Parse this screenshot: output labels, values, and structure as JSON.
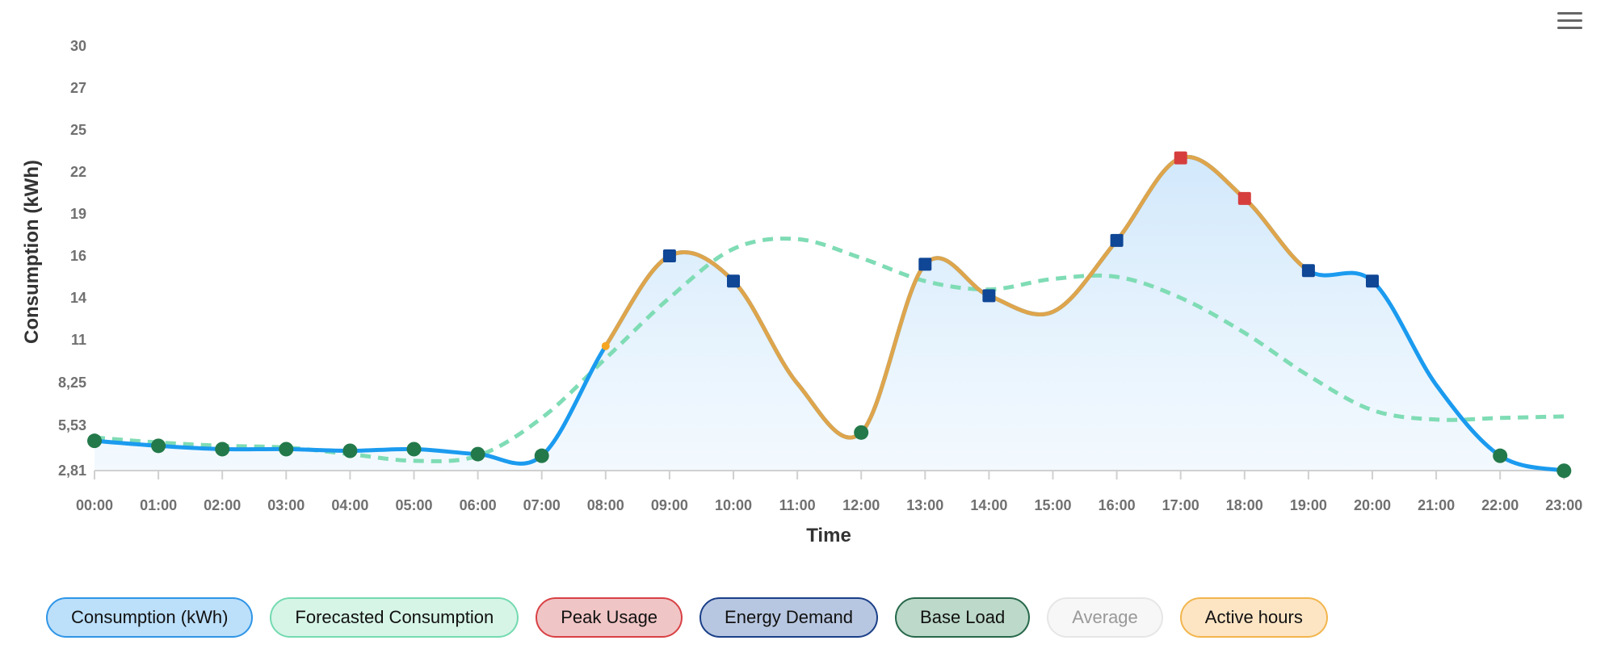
{
  "chart_data": {
    "type": "line",
    "xlabel": "Time",
    "ylabel": "Consumption (kWh)",
    "x": [
      "00:00",
      "01:00",
      "02:00",
      "03:00",
      "04:00",
      "05:00",
      "06:00",
      "07:00",
      "08:00",
      "09:00",
      "10:00",
      "11:00",
      "12:00",
      "13:00",
      "14:00",
      "15:00",
      "16:00",
      "17:00",
      "18:00",
      "19:00",
      "20:00",
      "21:00",
      "22:00",
      "23:00"
    ],
    "y_ticks": [
      2.81,
      5.53,
      8.25,
      11,
      14,
      16,
      19,
      22,
      25,
      27,
      30
    ],
    "y_tick_labels": [
      "2,81",
      "5,53",
      "8,25",
      "11",
      "14",
      "16",
      "19",
      "22",
      "25",
      "27",
      "30"
    ],
    "ylim": [
      2.81,
      30
    ],
    "grid": false,
    "legend_position": "bottom",
    "series": [
      {
        "name": "Consumption (kWh)",
        "values": [
          4.6,
          4.3,
          4.1,
          4.1,
          4.0,
          4.1,
          3.8,
          3.7,
          10.6,
          16.0,
          14.8,
          8.2,
          5.1,
          15.6,
          14.1,
          13.0,
          17.1,
          23.0,
          20.1,
          15.3,
          14.8,
          8.1,
          3.7,
          2.8
        ],
        "color": "#1b9bef",
        "active_hours_color": "#dea54c",
        "active_hour_ranges": [
          [
            8,
            12
          ],
          [
            12,
            19
          ]
        ],
        "marker_categories": [
          "Base Load",
          "Base Load",
          "Base Load",
          "Base Load",
          "Base Load",
          "Base Load",
          "Base Load",
          "Base Load",
          "Active hours",
          "Energy Demand",
          "Energy Demand",
          "none",
          "Base Load",
          "Energy Demand",
          "Energy Demand",
          "none",
          "Energy Demand",
          "Peak Usage",
          "Peak Usage",
          "Energy Demand",
          "Energy Demand",
          "none",
          "Base Load",
          "Base Load"
        ]
      },
      {
        "name": "Forecasted Consumption",
        "values": [
          4.8,
          4.5,
          4.3,
          4.2,
          3.8,
          3.4,
          3.7,
          6.0,
          9.8,
          14.0,
          16.5,
          17.2,
          15.9,
          14.8,
          14.4,
          14.9,
          15.0,
          14.0,
          11.5,
          8.7,
          6.5,
          5.9,
          6.0,
          6.1
        ],
        "color": "#7fdcb5",
        "dashed": true
      }
    ],
    "marker_colors": {
      "Base Load": "#23794a",
      "Energy Demand": "#0f4695",
      "Peak Usage": "#d63e3e",
      "Active hours": "#f5a623"
    },
    "legend": [
      {
        "label": "Consumption (kWh)",
        "bg": "#bcdffa",
        "border": "#2f95e6",
        "text": "#111111"
      },
      {
        "label": "Forecasted Consumption",
        "bg": "#d6f5e7",
        "border": "#74dab0",
        "text": "#111111"
      },
      {
        "label": "Peak Usage",
        "bg": "#f0c5c6",
        "border": "#d84144",
        "text": "#111111"
      },
      {
        "label": "Energy Demand",
        "bg": "#b8c7e1",
        "border": "#1a3f88",
        "text": "#111111"
      },
      {
        "label": "Base Load",
        "bg": "#bcd9c9",
        "border": "#27674a",
        "text": "#111111"
      },
      {
        "label": "Average",
        "bg": "#f7f7f7",
        "border": "#e6e6e6",
        "text": "#999999"
      },
      {
        "label": "Active hours",
        "bg": "#fde5c4",
        "border": "#f2b54c",
        "text": "#111111"
      }
    ]
  },
  "menu": {
    "icon": "hamburger-menu-icon"
  }
}
